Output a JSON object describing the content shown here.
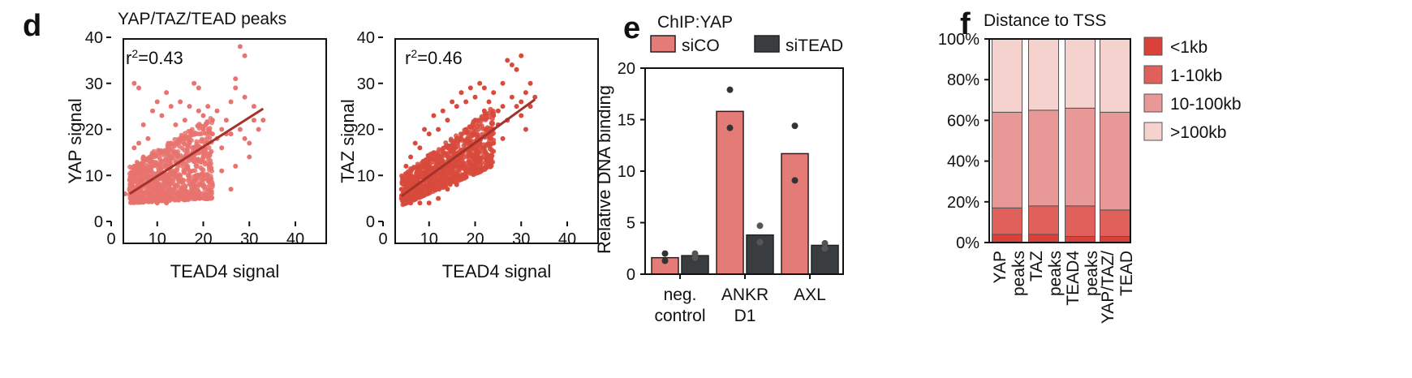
{
  "panel_labels": {
    "d": "d",
    "e": "e",
    "f": "f"
  },
  "colors": {
    "scatter_yap": "#e8736f",
    "scatter_taz": "#d84a3c",
    "fit_line": "#a3322b",
    "siCO": "#e57b76",
    "siTEAD": "#3a3d40",
    "dot": "#333333",
    "lt1kb": "#d9413a",
    "1to10kb": "#e0605c",
    "10to100kb": "#e89896",
    "gt100kb": "#f5d2cd"
  },
  "chart_data": [
    {
      "id": "scatter-yap",
      "type": "scatter",
      "title": "YAP/TAZ/TEAD peaks",
      "xlabel": "TEAD4 signal",
      "ylabel": "YAP signal",
      "annotation_r": "r",
      "annotation_sup": "2",
      "annotation_val": "=0.43",
      "xlim": [
        0,
        40
      ],
      "ylim": [
        0,
        40
      ],
      "xticks": [
        "0",
        "10",
        "20",
        "30",
        "40"
      ],
      "yticks": [
        "0",
        "10",
        "20",
        "30",
        "40"
      ],
      "fit_line": {
        "x": [
          4,
          33
        ],
        "y": [
          6,
          24.5
        ]
      },
      "points": [
        [
          5,
          30
        ],
        [
          6,
          29
        ],
        [
          10,
          26
        ],
        [
          12,
          28
        ],
        [
          18,
          30
        ],
        [
          19,
          29
        ],
        [
          27,
          29
        ],
        [
          28,
          38
        ],
        [
          29,
          36
        ],
        [
          27,
          31
        ],
        [
          29,
          18
        ],
        [
          31,
          22
        ],
        [
          33,
          22
        ],
        [
          24,
          16
        ],
        [
          22,
          22
        ],
        [
          20,
          23
        ],
        [
          16,
          22
        ],
        [
          14,
          21
        ],
        [
          8,
          18
        ],
        [
          6,
          17
        ],
        [
          5,
          16
        ],
        [
          7,
          21
        ],
        [
          9,
          24
        ],
        [
          11,
          23
        ],
        [
          13,
          25
        ],
        [
          15,
          26
        ],
        [
          17,
          25
        ],
        [
          19,
          24
        ],
        [
          21,
          25
        ],
        [
          23,
          24
        ],
        [
          25,
          22
        ],
        [
          26,
          19
        ],
        [
          28,
          20
        ],
        [
          30,
          17
        ],
        [
          27,
          12
        ],
        [
          24,
          11
        ],
        [
          26,
          7
        ],
        [
          22,
          8
        ],
        [
          20,
          10
        ],
        [
          18,
          9
        ],
        [
          16,
          6
        ],
        [
          14,
          5
        ],
        [
          12,
          4
        ],
        [
          10,
          4
        ],
        [
          8,
          5
        ],
        [
          6,
          6
        ],
        [
          4,
          7
        ],
        [
          4,
          9
        ],
        [
          5,
          12
        ],
        [
          7,
          14
        ],
        [
          9,
          13
        ],
        [
          11,
          15
        ],
        [
          13,
          17
        ],
        [
          15,
          18
        ],
        [
          17,
          17
        ],
        [
          19,
          16
        ],
        [
          21,
          17
        ],
        [
          23,
          18
        ],
        [
          25,
          19
        ],
        [
          6,
          10
        ],
        [
          8,
          11
        ],
        [
          10,
          10
        ],
        [
          12,
          12
        ],
        [
          14,
          13
        ],
        [
          16,
          14
        ],
        [
          18,
          13
        ],
        [
          20,
          14
        ],
        [
          9,
          8
        ],
        [
          11,
          7
        ],
        [
          13,
          9
        ],
        [
          15,
          10
        ],
        [
          17,
          11
        ],
        [
          7,
          8
        ],
        [
          5,
          5
        ],
        [
          20,
          20
        ],
        [
          22,
          19
        ],
        [
          24,
          20
        ],
        [
          30,
          14
        ],
        [
          32,
          20
        ],
        [
          3,
          6
        ],
        [
          31,
          25
        ],
        [
          29,
          27
        ],
        [
          26,
          26
        ]
      ],
      "cloud": {
        "x_range": [
          4,
          22
        ],
        "y_min": [
          4,
          5
        ],
        "y_max": [
          12,
          23
        ]
      }
    },
    {
      "id": "scatter-taz",
      "type": "scatter",
      "title": "",
      "xlabel": "TEAD4 signal",
      "ylabel": "TAZ signal",
      "annotation_r": "r",
      "annotation_sup": "2",
      "annotation_val": "=0.46",
      "xlim": [
        0,
        40
      ],
      "ylim": [
        0,
        40
      ],
      "xticks": [
        "0",
        "10",
        "20",
        "30",
        "40"
      ],
      "yticks": [
        "0",
        "10",
        "20",
        "30",
        "40"
      ],
      "fit_line": {
        "x": [
          4,
          33
        ],
        "y": [
          5.5,
          26.5
        ]
      },
      "points": [
        [
          30,
          36
        ],
        [
          28,
          34
        ],
        [
          27,
          35
        ],
        [
          29,
          33
        ],
        [
          32,
          30
        ],
        [
          31,
          28
        ],
        [
          33,
          27
        ],
        [
          30,
          26
        ],
        [
          26,
          30
        ],
        [
          24,
          28
        ],
        [
          22,
          29
        ],
        [
          20,
          27
        ],
        [
          18,
          26
        ],
        [
          16,
          25
        ],
        [
          14,
          22
        ],
        [
          12,
          20
        ],
        [
          10,
          19
        ],
        [
          8,
          16
        ],
        [
          6,
          14
        ],
        [
          5,
          12
        ],
        [
          7,
          17
        ],
        [
          9,
          20
        ],
        [
          11,
          23
        ],
        [
          13,
          24
        ],
        [
          15,
          26
        ],
        [
          17,
          28
        ],
        [
          19,
          29
        ],
        [
          21,
          30
        ],
        [
          23,
          26
        ],
        [
          25,
          24
        ],
        [
          27,
          22
        ],
        [
          29,
          25
        ],
        [
          26,
          18
        ],
        [
          24,
          17
        ],
        [
          22,
          16
        ],
        [
          20,
          14
        ],
        [
          18,
          11
        ],
        [
          16,
          8
        ],
        [
          14,
          7
        ],
        [
          12,
          5
        ],
        [
          10,
          4
        ],
        [
          8,
          4
        ],
        [
          6,
          4
        ],
        [
          4,
          5
        ],
        [
          4,
          7
        ],
        [
          5,
          9
        ],
        [
          28,
          27
        ],
        [
          30,
          23
        ],
        [
          32,
          25
        ],
        [
          31,
          20
        ],
        [
          25,
          21
        ],
        [
          23,
          20
        ],
        [
          21,
          18
        ],
        [
          19,
          17
        ],
        [
          17,
          15
        ],
        [
          15,
          13
        ],
        [
          13,
          11
        ],
        [
          11,
          10
        ],
        [
          9,
          9
        ],
        [
          7,
          7
        ],
        [
          5,
          6
        ],
        [
          20,
          22
        ],
        [
          18,
          20
        ],
        [
          16,
          18
        ],
        [
          14,
          16
        ],
        [
          12,
          14
        ],
        [
          10,
          12
        ],
        [
          8,
          10
        ],
        [
          6,
          8
        ],
        [
          22,
          24
        ],
        [
          24,
          23
        ],
        [
          26,
          25
        ]
      ],
      "cloud": {
        "x_range": [
          4,
          24
        ],
        "y_min": [
          3.5,
          12
        ],
        "y_max": [
          10,
          25
        ]
      }
    },
    {
      "id": "bar-chip",
      "type": "bar",
      "title": "ChIP:YAP",
      "ylabel": "Relative DNA binding",
      "ylim": [
        0,
        20
      ],
      "yticks": [
        "0",
        "5",
        "10",
        "15",
        "20"
      ],
      "categories": [
        {
          "line1": "neg.",
          "line2": "control"
        },
        {
          "line1": "ANKR",
          "line2": "D1"
        },
        {
          "line1": "AXL",
          "line2": ""
        }
      ],
      "series": [
        {
          "name": "siCO",
          "values": [
            1.6,
            15.8,
            11.7
          ],
          "points": [
            [
              2.0,
              1.3
            ],
            [
              17.9,
              14.2
            ],
            [
              14.4,
              9.1
            ]
          ]
        },
        {
          "name": "siTEAD",
          "values": [
            1.8,
            3.8,
            2.8
          ],
          "points": [
            [
              2.0,
              1.6
            ],
            [
              4.7,
              3.1
            ],
            [
              3.0,
              2.5
            ]
          ]
        }
      ]
    },
    {
      "id": "stacked-tss",
      "type": "bar",
      "title": "Distance to TSS",
      "ylim": [
        0,
        100
      ],
      "yticks": [
        "0%",
        "20%",
        "40%",
        "60%",
        "80%",
        "100%"
      ],
      "categories": [
        {
          "line1": "YAP",
          "line2": "peaks"
        },
        {
          "line1": "TAZ",
          "line2": "peaks"
        },
        {
          "line1": "TEAD4",
          "line2": "peaks"
        },
        {
          "line1": "YAP/TAZ/",
          "line2": "TEAD"
        }
      ],
      "series": [
        {
          "name": "<1kb",
          "values": [
            4,
            4,
            3,
            3
          ]
        },
        {
          "name": "1-10kb",
          "values": [
            13,
            14,
            15,
            13
          ]
        },
        {
          "name": "10-100kb",
          "values": [
            47,
            47,
            48,
            48
          ]
        },
        {
          "name": ">100kb",
          "values": [
            36,
            35,
            34,
            36
          ]
        }
      ]
    }
  ]
}
